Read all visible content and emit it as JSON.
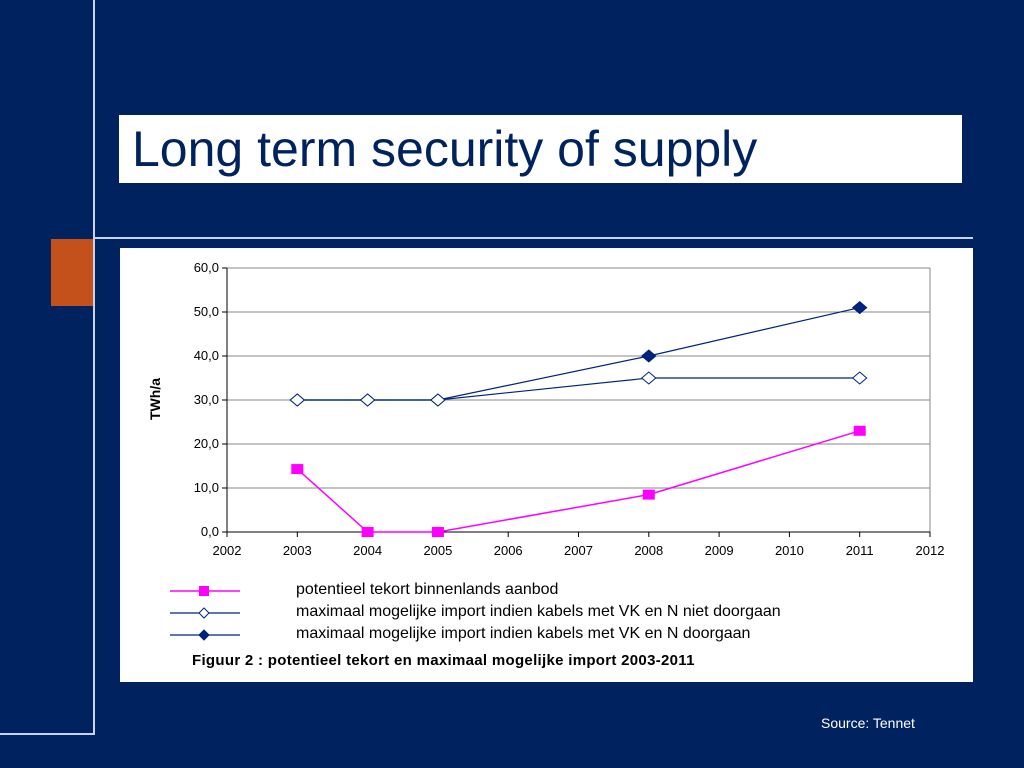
{
  "slide": {
    "title": "Long term security of supply",
    "source": "Source: Tennet",
    "background_color": "#00235f",
    "accent_color": "#c4511c"
  },
  "chart_data": {
    "type": "line",
    "ylabel": "TWh/a",
    "xlabel": "",
    "xlim": [
      2002,
      2012
    ],
    "ylim": [
      0,
      60
    ],
    "x_ticks": [
      2002,
      2003,
      2004,
      2005,
      2006,
      2007,
      2008,
      2009,
      2010,
      2011,
      2012
    ],
    "y_ticks": [
      "0,0",
      "10,0",
      "20,0",
      "30,0",
      "40,0",
      "50,0",
      "60,0"
    ],
    "grid": true,
    "legend_position": "bottom",
    "caption": "Figuur 2 : potentieel tekort en maximaal mogelijke import 2003-2011",
    "series": [
      {
        "name": "potentieel tekort binnenlands aanbod",
        "color": "#ff00ff",
        "marker": "square",
        "x": [
          2003,
          2004,
          2005,
          2008,
          2011
        ],
        "values": [
          14.3,
          0,
          0,
          8.5,
          23.0
        ]
      },
      {
        "name": "maximaal mogelijke import indien kabels met VK en N niet doorgaan",
        "color": "#00237c",
        "marker": "diamond-open",
        "x": [
          2003,
          2004,
          2005,
          2008,
          2011
        ],
        "values": [
          30.0,
          30.0,
          30.0,
          35.0,
          35.0
        ]
      },
      {
        "name": "maximaal mogelijke import indien kabels met VK en N doorgaan",
        "color": "#00237c",
        "marker": "diamond-filled",
        "x": [
          2003,
          2004,
          2005,
          2008,
          2011
        ],
        "values": [
          30.0,
          30.0,
          30.0,
          40.0,
          51.0
        ]
      }
    ]
  }
}
